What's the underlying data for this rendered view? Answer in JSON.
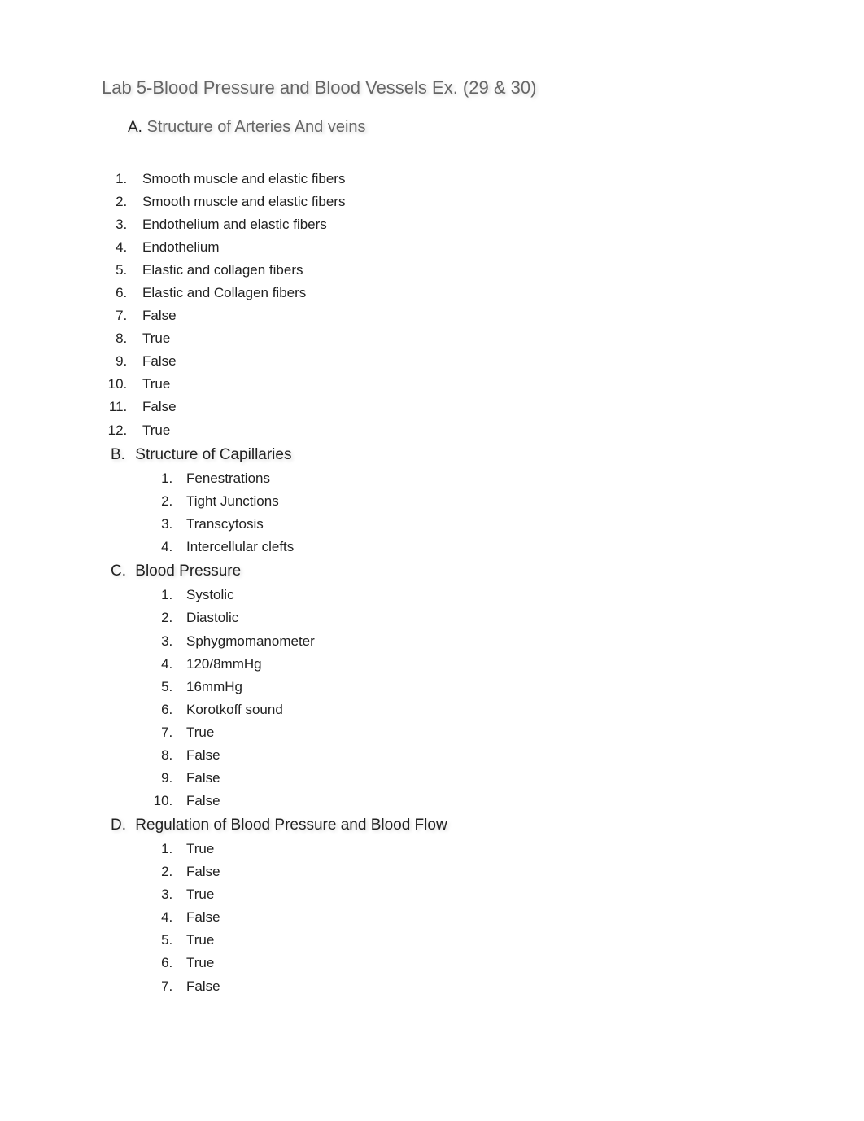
{
  "title": "Lab 5-Blood Pressure and Blood Vessels Ex. (29 & 30)",
  "sections": {
    "A": {
      "letter": "A.",
      "heading": "Structure of Arteries And veins",
      "items": [
        "Smooth muscle and elastic fibers",
        "Smooth muscle and elastic fibers",
        "Endothelium and elastic fibers",
        "Endothelium",
        "Elastic and collagen fibers",
        "Elastic and Collagen fibers",
        "False",
        "True",
        "False",
        "True",
        "False",
        "True"
      ]
    },
    "B": {
      "letter": "B.",
      "heading": "Structure of Capillaries",
      "items": [
        "Fenestrations",
        "Tight Junctions",
        "Transcytosis",
        "Intercellular clefts"
      ]
    },
    "C": {
      "letter": "C.",
      "heading": "Blood Pressure",
      "items": [
        "Systolic",
        "Diastolic",
        "Sphygmomanometer",
        "120/8mmHg",
        "16mmHg",
        "Korotkoff sound",
        "True",
        "False",
        "False",
        "False"
      ]
    },
    "D": {
      "letter": "D.",
      "heading": "Regulation of Blood Pressure and Blood Flow",
      "items": [
        "True",
        "False",
        "True",
        "False",
        "True",
        "True",
        "False"
      ]
    }
  },
  "styles": {
    "background_color": "#ffffff",
    "title_color": "#666666",
    "title_fontsize": 22,
    "section_a_heading_color": "#666666",
    "section_heading_color": "#222222",
    "body_text_color": "#222222",
    "body_fontsize": 17,
    "line_height": 1.65,
    "text_shadow": "2px 2px 4px rgba(0,0,0,0.15)"
  }
}
